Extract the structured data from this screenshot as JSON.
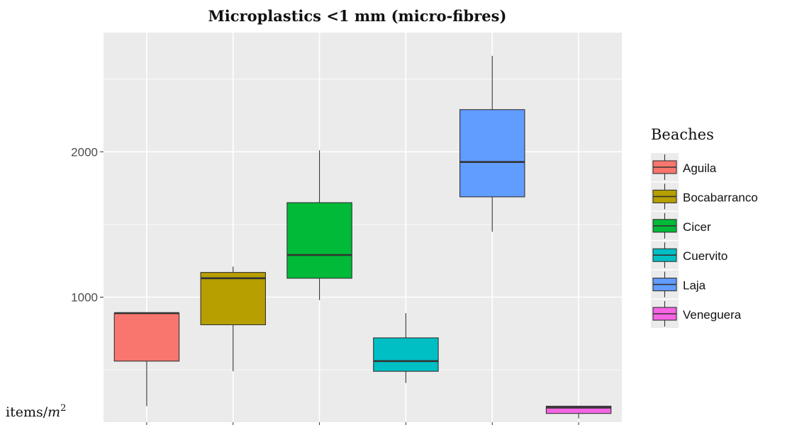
{
  "chart_data": {
    "type": "box",
    "title": "Microplastics <1 mm (micro-fibres)",
    "ylabel": "items/m²",
    "ylabel_parts": {
      "text": "items/",
      "math": "m",
      "sup": "2"
    },
    "xlabel": "",
    "ylim": [
      140,
      2820
    ],
    "yticks": [
      1000,
      2000
    ],
    "grid": true,
    "legend": {
      "title": "Beaches",
      "position": "right"
    },
    "series": [
      {
        "name": "Aguila",
        "color": "#F8766D",
        "min": 250,
        "q1": 560,
        "median": 890,
        "q3": 890,
        "max": 890
      },
      {
        "name": "Bocabarranco",
        "color": "#B79F00",
        "min": 490,
        "q1": 810,
        "median": 1130,
        "q3": 1170,
        "max": 1210
      },
      {
        "name": "Cicer",
        "color": "#00BA38",
        "min": 980,
        "q1": 1130,
        "median": 1290,
        "q3": 1650,
        "max": 2010
      },
      {
        "name": "Cuervito",
        "color": "#00BFC4",
        "min": 410,
        "q1": 490,
        "median": 560,
        "q3": 720,
        "max": 890
      },
      {
        "name": "Laja",
        "color": "#619CFF",
        "min": 1450,
        "q1": 1690,
        "median": 1930,
        "q3": 2290,
        "max": 2660
      },
      {
        "name": "Veneguera",
        "color": "#F564E3",
        "min": 165,
        "q1": 200,
        "median": 240,
        "q3": 250,
        "max": 250
      }
    ]
  }
}
